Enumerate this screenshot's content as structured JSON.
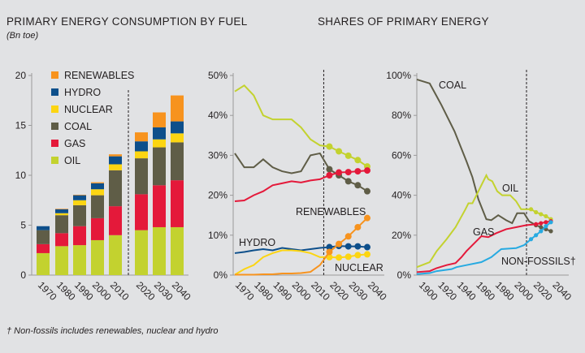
{
  "header": {
    "left_title": "PRIMARY ENERGY CONSUMPTION BY FUEL",
    "left_unit": "(Bn toe)",
    "right_title": "SHARES OF PRIMARY ENERGY"
  },
  "footnote": "† Non-fossils includes renewables, nuclear and hydro",
  "colors": {
    "oil": "#c3d22f",
    "gas": "#e4193a",
    "coal": "#5f5d47",
    "nuclear": "#fcd512",
    "hydro": "#0d4f8b",
    "renewables": "#f7931e",
    "non_fossils": "#27aae1",
    "background": "#e1e2e4"
  },
  "chart_data": [
    {
      "type": "bar",
      "stacked": true,
      "ylabel": "(Bn toe)",
      "ylim": [
        0,
        20
      ],
      "yticks": [
        "0",
        "5",
        "10",
        "15",
        "20"
      ],
      "categories": [
        "1970",
        "1980",
        "1990",
        "2000",
        "2010",
        "2020",
        "2030",
        "2040"
      ],
      "legend": "top-left",
      "legend_order": [
        "RENEWABLES",
        "HYDRO",
        "NUCLEAR",
        "COAL",
        "GAS",
        "OIL"
      ],
      "projection_divider_between": [
        "2010",
        "2020"
      ],
      "series": [
        {
          "name": "OIL",
          "color": "#c3d22f",
          "values": [
            2.2,
            2.9,
            3.0,
            3.5,
            4.0,
            4.5,
            4.8,
            4.8
          ]
        },
        {
          "name": "GAS",
          "color": "#e4193a",
          "values": [
            0.9,
            1.3,
            1.9,
            2.2,
            2.9,
            3.6,
            4.2,
            4.7
          ]
        },
        {
          "name": "COAL",
          "color": "#5f5d47",
          "values": [
            1.4,
            1.8,
            2.1,
            2.3,
            3.6,
            3.6,
            3.8,
            3.8
          ]
        },
        {
          "name": "NUCLEAR",
          "color": "#fcd512",
          "values": [
            0.0,
            0.2,
            0.5,
            0.6,
            0.6,
            0.7,
            0.8,
            0.9
          ]
        },
        {
          "name": "HYDRO",
          "color": "#0d4f8b",
          "values": [
            0.4,
            0.4,
            0.5,
            0.6,
            0.8,
            1.0,
            1.2,
            1.2
          ]
        },
        {
          "name": "RENEWABLES",
          "color": "#f7931e",
          "values": [
            0.0,
            0.05,
            0.05,
            0.1,
            0.2,
            0.9,
            1.5,
            2.6
          ]
        }
      ]
    },
    {
      "type": "line",
      "ylim": [
        0,
        50
      ],
      "yticks": [
        "0%",
        "10%",
        "20%",
        "30%",
        "40%",
        "50%"
      ],
      "xticks": [
        "1970",
        "1980",
        "1990",
        "2000",
        "2010",
        "2020",
        "2030",
        "2040"
      ],
      "projection_divider": 2012,
      "projection_markers_from": 2015,
      "x": [
        1965,
        1970,
        1975,
        1980,
        1985,
        1990,
        1995,
        2000,
        2005,
        2010,
        2015,
        2020,
        2025,
        2030,
        2035
      ],
      "series": [
        {
          "key": "oil",
          "color": "#c3d22f",
          "values": [
            46,
            47.5,
            45,
            40,
            39,
            39,
            39,
            37,
            34,
            32.5,
            32.2,
            31,
            29.9,
            28.8,
            27.2
          ]
        },
        {
          "key": "coal",
          "color": "#5f5d47",
          "values": [
            30.5,
            27,
            27,
            29,
            27,
            26,
            25.5,
            26,
            30,
            30.5,
            26.5,
            25,
            23.5,
            22.5,
            21
          ]
        },
        {
          "key": "gas",
          "color": "#e4193a",
          "values": [
            18.5,
            18.7,
            20,
            21,
            22.5,
            23,
            23.5,
            23.2,
            23.7,
            24,
            25,
            25.7,
            25.8,
            26,
            26.2
          ]
        },
        {
          "key": "hydro",
          "name": "HYDRO",
          "color": "#0d4f8b",
          "values": [
            5.5,
            5.8,
            6.2,
            6.5,
            6.2,
            6.8,
            6.5,
            6.2,
            6.5,
            6.8,
            7.0,
            7.3,
            7.2,
            7.2,
            7.0
          ]
        },
        {
          "key": "nuclear",
          "name": "NUCLEAR",
          "color": "#fcd512",
          "values": [
            0.1,
            1.5,
            2.5,
            4.5,
            5.5,
            6.2,
            6.2,
            6.0,
            5.5,
            4.5,
            4.5,
            4.4,
            4.6,
            5.0,
            5.2
          ]
        },
        {
          "key": "renewables",
          "name": "RENEWABLES",
          "color": "#f7931e",
          "values": [
            0.1,
            0.1,
            0.1,
            0.2,
            0.2,
            0.4,
            0.4,
            0.5,
            0.8,
            2.5,
            5.8,
            7.8,
            9.7,
            12,
            14.3
          ]
        }
      ]
    },
    {
      "type": "line",
      "ylim": [
        0,
        100
      ],
      "yticks": [
        "0%",
        "20%",
        "40%",
        "60%",
        "80%",
        "100%"
      ],
      "xticks": [
        "1900",
        "1920",
        "1940",
        "1960",
        "1980",
        "2000",
        "2020",
        "2040"
      ],
      "projection_divider": 2010,
      "projection_markers_from": 2015,
      "series": [
        {
          "key": "coal",
          "name": "COAL",
          "color": "#5f5d47",
          "points": [
            [
              1900,
              98
            ],
            [
              1913,
              96
            ],
            [
              1925,
              85
            ],
            [
              1938,
              72
            ],
            [
              1950,
              57
            ],
            [
              1956,
              49
            ],
            [
              1962,
              38
            ],
            [
              1970,
              28
            ],
            [
              1975,
              27.5
            ],
            [
              1982,
              30
            ],
            [
              1990,
              27.5
            ],
            [
              1996,
              26
            ],
            [
              2001,
              31
            ],
            [
              2008,
              31
            ],
            [
              2013,
              27
            ],
            [
              2020,
              25
            ],
            [
              2025,
              24
            ],
            [
              2030,
              23
            ],
            [
              2035,
              22
            ]
          ]
        },
        {
          "key": "oil",
          "name": "OIL",
          "color": "#c3d22f",
          "points": [
            [
              1900,
              4
            ],
            [
              1913,
              6.5
            ],
            [
              1920,
              12
            ],
            [
              1930,
              18
            ],
            [
              1939,
              24
            ],
            [
              1949,
              33
            ],
            [
              1952,
              36
            ],
            [
              1956,
              36
            ],
            [
              1963,
              43
            ],
            [
              1970,
              50
            ],
            [
              1972,
              48
            ],
            [
              1976,
              47
            ],
            [
              1981,
              42
            ],
            [
              1986,
              40
            ],
            [
              1994,
              40
            ],
            [
              2000,
              37
            ],
            [
              2005,
              33
            ],
            [
              2015,
              33
            ],
            [
              2020,
              31.5
            ],
            [
              2025,
              30.5
            ],
            [
              2030,
              29.5
            ],
            [
              2035,
              28
            ]
          ]
        },
        {
          "key": "gas",
          "name": "GAS",
          "color": "#e4193a",
          "points": [
            [
              1900,
              1.5
            ],
            [
              1913,
              2
            ],
            [
              1920,
              3.5
            ],
            [
              1930,
              5
            ],
            [
              1939,
              6
            ],
            [
              1945,
              9
            ],
            [
              1950,
              12
            ],
            [
              1956,
              15
            ],
            [
              1965,
              19.5
            ],
            [
              1972,
              19
            ],
            [
              1980,
              21
            ],
            [
              1990,
              23
            ],
            [
              2000,
              24
            ],
            [
              2010,
              25
            ],
            [
              2020,
              25.5
            ],
            [
              2025,
              26
            ],
            [
              2030,
              26.5
            ],
            [
              2035,
              27
            ]
          ]
        },
        {
          "key": "non_fossils",
          "name": "NON-FOSSILS†",
          "color": "#27aae1",
          "points": [
            [
              1900,
              0.5
            ],
            [
              1913,
              1
            ],
            [
              1920,
              2
            ],
            [
              1935,
              3
            ],
            [
              1940,
              4
            ],
            [
              1950,
              5
            ],
            [
              1965,
              6.5
            ],
            [
              1975,
              9
            ],
            [
              1985,
              13
            ],
            [
              2000,
              13.5
            ],
            [
              2008,
              15
            ],
            [
              2015,
              18
            ],
            [
              2020,
              20
            ],
            [
              2025,
              22
            ],
            [
              2030,
              24.5
            ],
            [
              2035,
              26.5
            ]
          ]
        }
      ]
    }
  ]
}
